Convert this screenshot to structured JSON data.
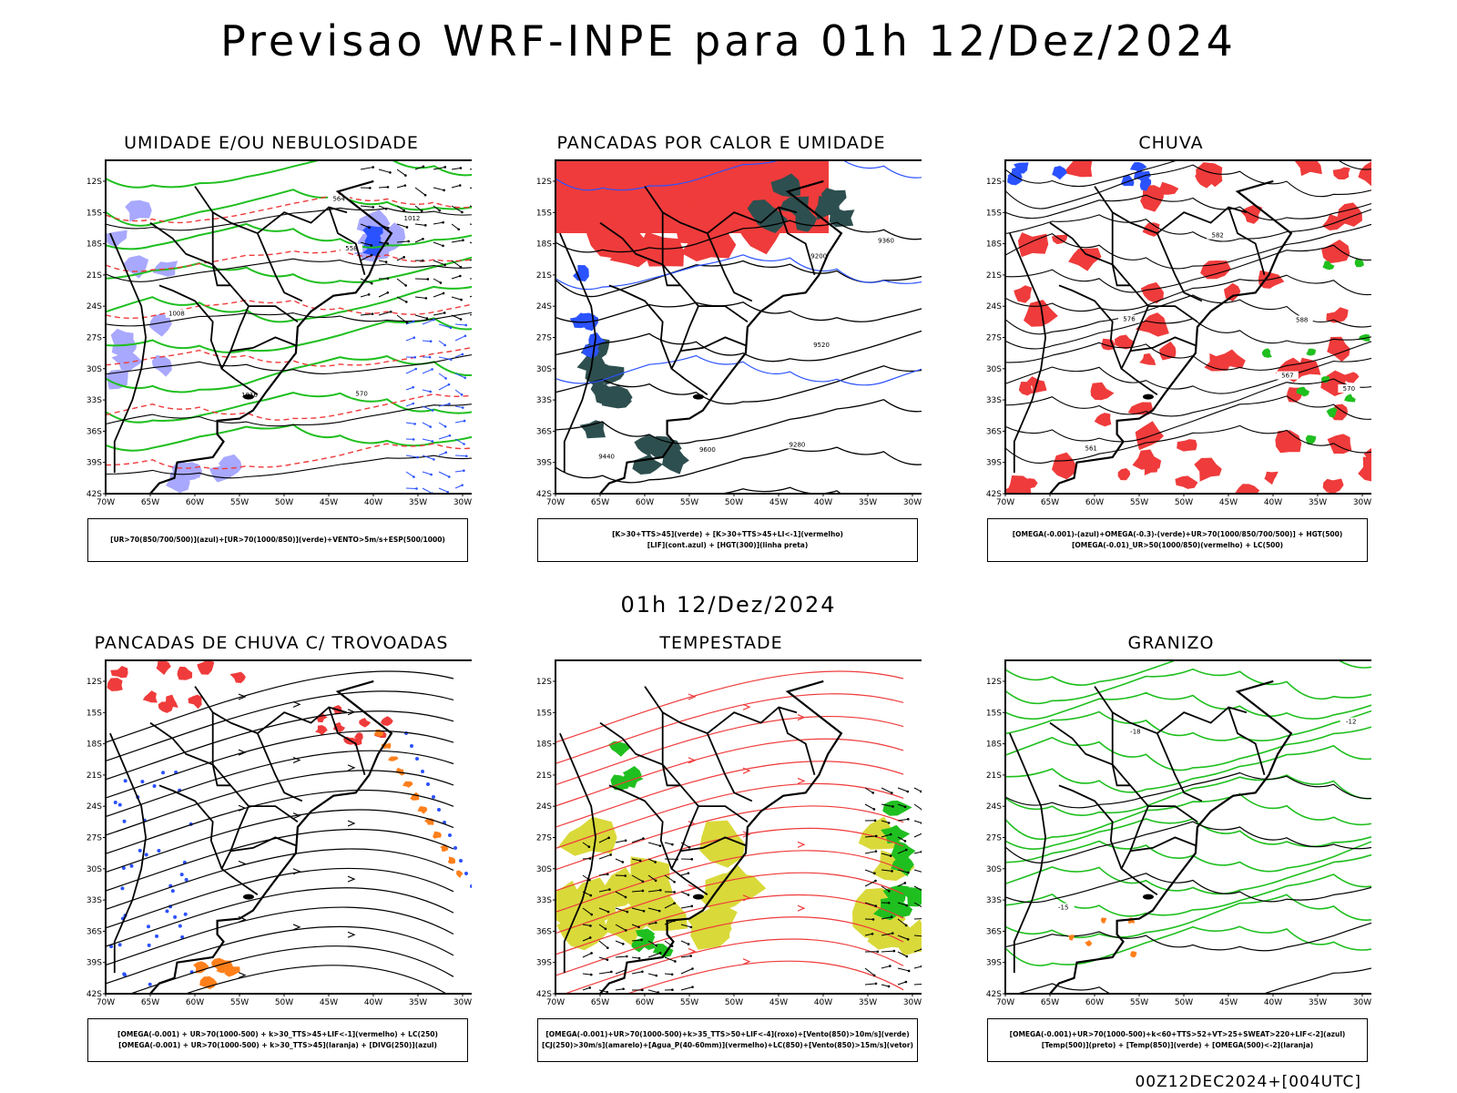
{
  "title": "Previsao WRF-INPE  para 01h 12/Dez/2024",
  "subtitle": "01h 12/Dez/2024",
  "footer": "00Z12DEC2024+[004UTC]",
  "axes": {
    "lat_labels": [
      "12S",
      "15S",
      "18S",
      "21S",
      "24S",
      "27S",
      "30S",
      "33S",
      "36S",
      "39S",
      "42S"
    ],
    "lon_labels": [
      "70W",
      "65W",
      "60W",
      "55W",
      "50W",
      "45W",
      "40W",
      "35W",
      "30W"
    ]
  },
  "colors": {
    "red": "#ef3b3b",
    "green": "#1fbf1f",
    "blue": "#2b52ff",
    "lightblue": "#a8a8ff",
    "darkgreen": "#2e4f4f",
    "yellow": "#d9d93a",
    "orange": "#ff7f1a"
  },
  "panels": [
    {
      "title": "UMIDADE E/OU NEBULOSIDADE",
      "legend": [
        "[UR>70(850/700/500)](azul)+[UR>70(1000/850)](verde)+VENTO>5m/s+ESP(500/1000)"
      ],
      "labels": [
        "1012",
        "1008",
        "1016",
        "570",
        "564",
        "558"
      ]
    },
    {
      "title": "PANCADAS POR CALOR E UMIDADE",
      "legend": [
        "[K>30+TTS>45](verde) + [K>30+TTS>45+LI<-1](vermelho)",
        "[LIF](cont.azul) + [HGT(300)](linha preta)"
      ],
      "labels": [
        "9600",
        "9520",
        "9440",
        "9360",
        "9280",
        "9200"
      ]
    },
    {
      "title": "CHUVA",
      "legend": [
        "[OMEGA(-0.001)-(azul)+OMEGA(-0.3)-(verde)+UR>70(1000/850/700/500)] + HGT(500)",
        "[OMEGA(-0.01)_UR>50(1000/850)(vermelho) + LC(500)"
      ],
      "labels": [
        "588",
        "582",
        "576",
        "570",
        "567",
        "561"
      ]
    },
    {
      "title": "PANCADAS DE CHUVA C/ TROVOADAS",
      "legend": [
        "[OMEGA(-0.001) + UR>70(1000-500) + k>30_TTS>45+LIF<-1](vermelho) + LC(250)",
        "[OMEGA(-0.001) + UR>70(1000-500) + k>30_TTS>45](laranja) + [DIVG(250)](azul)"
      ],
      "labels": []
    },
    {
      "title": "TEMPESTADE",
      "legend": [
        "[OMEGA(-0.001)+UR>70(1000-500)+k>35_TTS>50+LIF<-4](roxo)+[Vento(850)>10m/s](verde)",
        "[CJ(250)>30m/s](amarelo)+[Agua_P(40-60mm)](vermelho)+LC(850)+[Vento(850)>15m/s](vetor)"
      ],
      "labels": []
    },
    {
      "title": "GRANIZO",
      "legend": [
        "[OMEGA(-0.001)+UR>70(1000-500)+k<60+TTS>52+VT>25+SWEAT>220+LIF<-2](azul)",
        "[Temp(500)](preto) + [Temp(850)](verde) + [OMEGA(500)<-2](laranja)"
      ],
      "labels": [
        "-12",
        "-15",
        "-18"
      ]
    }
  ]
}
